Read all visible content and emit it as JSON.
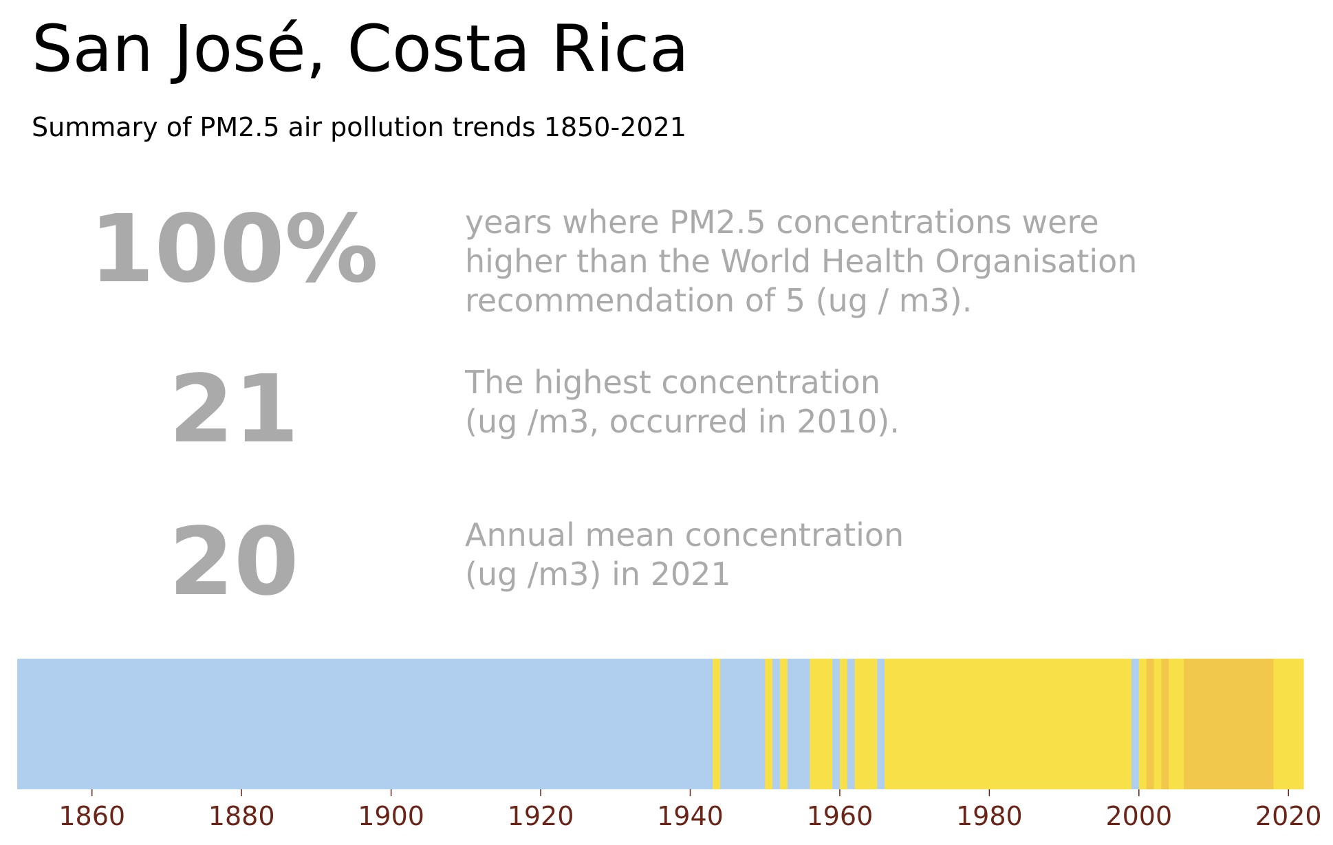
{
  "title": "San José, Costa Rica",
  "subtitle": "Summary of PM2.5 air pollution trends 1850-2021",
  "stats": [
    {
      "value": "100%",
      "lines": [
        "years where PM2.5 concentrations were",
        "higher than the World Health Organisation",
        "recommendation of 5 (ug / m3)."
      ]
    },
    {
      "value": "21",
      "lines": [
        "The highest concentration",
        "(ug /m3, occurred in 2010)."
      ]
    },
    {
      "value": "20",
      "lines": [
        "Annual mean concentration",
        "(ug /m3) in 2021"
      ]
    }
  ],
  "chart_data": {
    "type": "heatmap",
    "title": "",
    "xlabel": "",
    "ylabel": "",
    "xlim": [
      1850,
      2022
    ],
    "x_ticks": [
      1860,
      1880,
      1900,
      1920,
      1940,
      1960,
      1980,
      2000,
      2020
    ],
    "color_levels": {
      "low": "#b0cfee",
      "medium": "#f8e048",
      "high": "#f2c84c"
    },
    "tick_color": "#6b2418",
    "segments": [
      {
        "start": 1850,
        "end": 1943,
        "level": "low"
      },
      {
        "start": 1943,
        "end": 1944,
        "level": "medium"
      },
      {
        "start": 1944,
        "end": 1950,
        "level": "low"
      },
      {
        "start": 1950,
        "end": 1951,
        "level": "medium"
      },
      {
        "start": 1951,
        "end": 1952,
        "level": "low"
      },
      {
        "start": 1952,
        "end": 1953,
        "level": "medium"
      },
      {
        "start": 1953,
        "end": 1956,
        "level": "low"
      },
      {
        "start": 1956,
        "end": 1959,
        "level": "medium"
      },
      {
        "start": 1959,
        "end": 1960,
        "level": "low"
      },
      {
        "start": 1960,
        "end": 1961,
        "level": "medium"
      },
      {
        "start": 1961,
        "end": 1962,
        "level": "low"
      },
      {
        "start": 1962,
        "end": 1965,
        "level": "medium"
      },
      {
        "start": 1965,
        "end": 1966,
        "level": "low"
      },
      {
        "start": 1966,
        "end": 1999,
        "level": "medium"
      },
      {
        "start": 1999,
        "end": 2000,
        "level": "low"
      },
      {
        "start": 2000,
        "end": 2001,
        "level": "medium"
      },
      {
        "start": 2001,
        "end": 2002,
        "level": "high"
      },
      {
        "start": 2002,
        "end": 2003,
        "level": "medium"
      },
      {
        "start": 2003,
        "end": 2004,
        "level": "high"
      },
      {
        "start": 2004,
        "end": 2006,
        "level": "medium"
      },
      {
        "start": 2006,
        "end": 2018,
        "level": "high"
      },
      {
        "start": 2018,
        "end": 2022,
        "level": "medium"
      }
    ]
  }
}
